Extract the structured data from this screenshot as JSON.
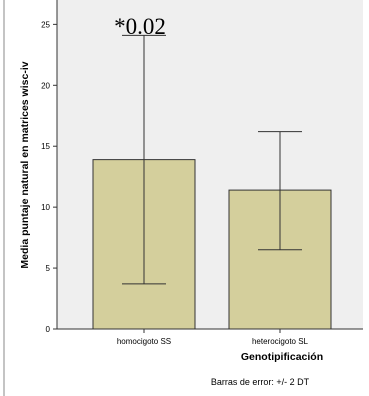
{
  "chart_data": {
    "type": "bar",
    "categories": [
      "homocigoto SS",
      "heterocigoto SL"
    ],
    "values": [
      13.9,
      11.4
    ],
    "error_low": [
      3.7,
      6.5
    ],
    "error_high": [
      24.1,
      16.2
    ],
    "ylim": [
      0,
      27
    ],
    "yticks": [
      0,
      5,
      10,
      15,
      20,
      25
    ],
    "xlabel": "Genotipificación",
    "ylabel": "Media puntaje natural en matrices wisc-iv",
    "annotation": "*0.02",
    "footnote": "Barras de error: +/- 2 DT",
    "grid": false,
    "colors": {
      "bar_fill": "#d4cf9c",
      "bar_stroke": "#333333",
      "plot_bg": "#efefef",
      "error_bar": "#333333"
    }
  }
}
